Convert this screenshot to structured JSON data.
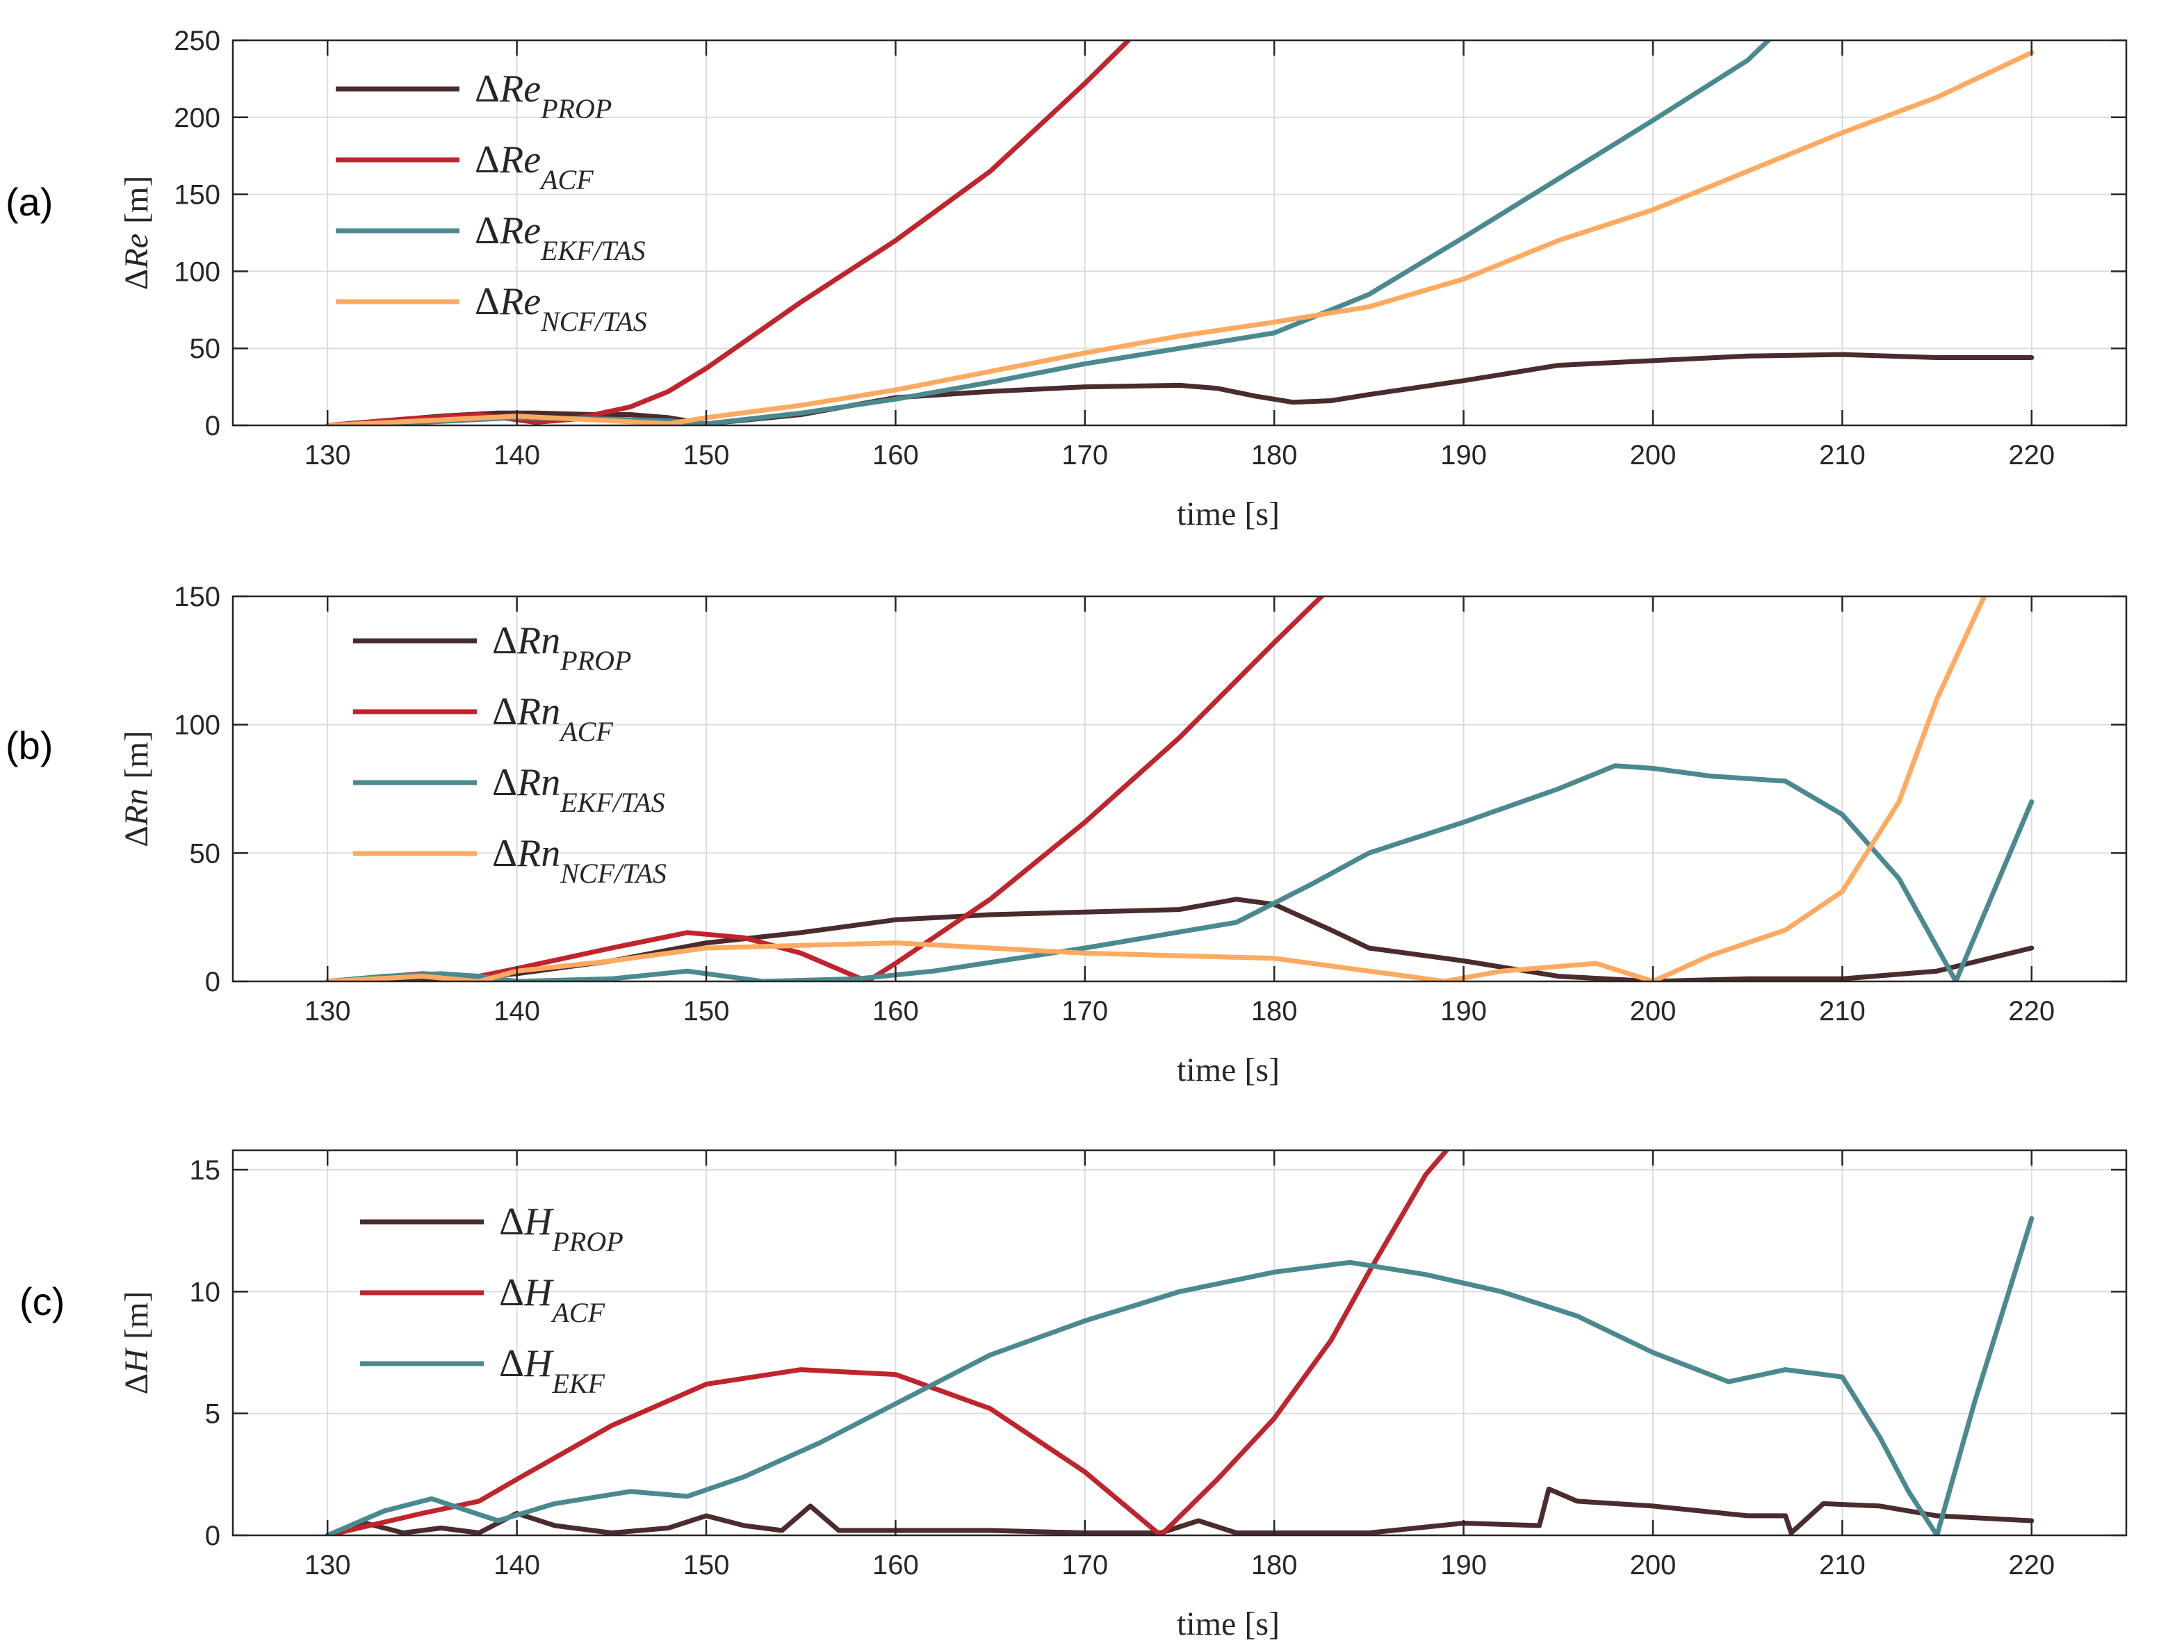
{
  "figure": {
    "colors": {
      "prop": "#4a2c2e",
      "acf": "#c0242c",
      "ekf": "#4a8a8f",
      "ncf": "#ffaa60",
      "grid": "#dcdcdc",
      "axis": "#262626"
    }
  },
  "chart_data": [
    {
      "type": "line",
      "panel_label": "(a)",
      "xlabel": "time [s]",
      "ylabel": {
        "delta": "Δ",
        "var": "Re",
        "unit": "[m]"
      },
      "xlim": [
        125,
        225
      ],
      "ylim": [
        0,
        250
      ],
      "xticks": [
        130,
        140,
        150,
        160,
        170,
        180,
        190,
        200,
        210,
        220
      ],
      "xtick_labels": [
        "130",
        "140",
        "150",
        "160",
        "170",
        "180",
        "190",
        "200",
        "210",
        "220"
      ],
      "yticks": [
        0,
        50,
        100,
        150,
        200,
        250
      ],
      "ytick_labels": [
        "0",
        "50",
        "100",
        "150",
        "200",
        "250"
      ],
      "legend_position": "top-left",
      "series": [
        {
          "key": "prop",
          "legend": {
            "delta": "Δ",
            "var": "Re",
            "sub": "PROP"
          },
          "x": [
            130,
            133,
            136,
            139,
            141,
            144,
            146,
            148,
            150,
            155,
            160,
            165,
            170,
            175,
            177,
            179,
            181,
            183,
            185,
            190,
            195,
            200,
            205,
            210,
            215,
            220
          ],
          "y": [
            0,
            3,
            6,
            8,
            8,
            7,
            7,
            5,
            1,
            7,
            18,
            22,
            25,
            26,
            24,
            19,
            15,
            16,
            20,
            29,
            39,
            42,
            45,
            46,
            44,
            44
          ]
        },
        {
          "key": "acf",
          "legend": {
            "delta": "Δ",
            "var": "Re",
            "sub": "ACF"
          },
          "x": [
            130,
            134,
            138,
            141,
            143,
            146,
            148,
            150,
            155,
            160,
            165,
            170,
            172.3
          ],
          "y": [
            0,
            4,
            7,
            2,
            4,
            12,
            22,
            37,
            80,
            120,
            165,
            222,
            250
          ]
        },
        {
          "key": "ekf",
          "legend": {
            "delta": "Δ",
            "var": "Re",
            "sub": "EKF/TAS"
          },
          "x": [
            130,
            135,
            140,
            145,
            148,
            150,
            155,
            160,
            165,
            170,
            175,
            180,
            182,
            185,
            190,
            195,
            200,
            205,
            206.1
          ],
          "y": [
            0,
            2,
            5,
            4,
            3,
            1,
            8,
            17,
            28,
            40,
            50,
            60,
            70,
            85,
            122,
            160,
            198,
            237,
            250
          ]
        },
        {
          "key": "ncf",
          "legend": {
            "delta": "Δ",
            "var": "Re",
            "sub": "NCF/TAS"
          },
          "x": [
            130,
            135,
            140,
            145,
            148,
            150,
            155,
            160,
            165,
            170,
            175,
            180,
            185,
            190,
            195,
            200,
            205,
            210,
            215,
            220
          ],
          "y": [
            0,
            3,
            6,
            3,
            1,
            5,
            13,
            23,
            35,
            47,
            58,
            67,
            77,
            95,
            120,
            140,
            165,
            190,
            213,
            242
          ]
        }
      ]
    },
    {
      "type": "line",
      "panel_label": "(b)",
      "xlabel": "time [s]",
      "ylabel": {
        "delta": "Δ",
        "var": "Rn",
        "unit": "[m]"
      },
      "xlim": [
        125,
        225
      ],
      "ylim": [
        0,
        150
      ],
      "xticks": [
        130,
        140,
        150,
        160,
        170,
        180,
        190,
        200,
        210,
        220
      ],
      "xtick_labels": [
        "130",
        "140",
        "150",
        "160",
        "170",
        "180",
        "190",
        "200",
        "210",
        "220"
      ],
      "yticks": [
        0,
        50,
        100,
        150
      ],
      "ytick_labels": [
        "0",
        "50",
        "100",
        "150"
      ],
      "legend_position": "top-left",
      "series": [
        {
          "key": "prop",
          "legend": {
            "delta": "Δ",
            "var": "Rn",
            "sub": "PROP"
          },
          "x": [
            130,
            134,
            137,
            140,
            145,
            150,
            155,
            160,
            165,
            170,
            175,
            178,
            180,
            183,
            185,
            190,
            195,
            200,
            205,
            210,
            215,
            220
          ],
          "y": [
            0,
            1,
            1,
            3,
            8,
            15,
            19,
            24,
            26,
            27,
            28,
            32,
            30,
            20,
            13,
            8,
            2,
            0,
            1,
            1,
            4,
            13
          ]
        },
        {
          "key": "acf",
          "legend": {
            "delta": "Δ",
            "var": "Rn",
            "sub": "ACF"
          },
          "x": [
            130,
            135,
            138,
            140,
            145,
            149,
            152,
            155,
            158.5,
            160,
            165,
            170,
            175,
            180,
            182.5
          ],
          "y": [
            0,
            3,
            2,
            5,
            13,
            19,
            17,
            11,
            0,
            7,
            32,
            62,
            95,
            132,
            150
          ]
        },
        {
          "key": "ekf",
          "legend": {
            "delta": "Δ",
            "var": "Rn",
            "sub": "EKF/TAS"
          },
          "x": [
            130,
            133,
            136,
            138,
            140,
            145,
            149,
            153,
            158,
            162,
            170,
            178,
            182,
            185,
            190,
            195,
            198,
            200,
            203,
            207,
            210,
            213,
            216,
            218,
            220
          ],
          "y": [
            0,
            2,
            3,
            2,
            0,
            1,
            4,
            0,
            1,
            4,
            13,
            23,
            38,
            50,
            62,
            75,
            84,
            83,
            80,
            78,
            65,
            40,
            0,
            35,
            70
          ]
        },
        {
          "key": "ncf",
          "legend": {
            "delta": "Δ",
            "var": "Rn",
            "sub": "NCF/TAS"
          },
          "x": [
            130,
            135,
            138,
            140,
            145,
            150,
            155,
            160,
            165,
            170,
            175,
            180,
            185,
            189,
            192,
            197,
            200,
            203,
            207,
            210,
            213,
            215,
            217.5
          ],
          "y": [
            0,
            2,
            0,
            4,
            8,
            13,
            14,
            15,
            13,
            11,
            10,
            9,
            4,
            0,
            4,
            7,
            0,
            10,
            20,
            35,
            70,
            110,
            150
          ]
        }
      ]
    },
    {
      "type": "line",
      "panel_label": "(c)",
      "xlabel": "time [s]",
      "ylabel": {
        "delta": "Δ",
        "var": "H",
        "unit": "[m]"
      },
      "xlim": [
        125,
        225
      ],
      "ylim": [
        0,
        15.8
      ],
      "xticks": [
        130,
        140,
        150,
        160,
        170,
        180,
        190,
        200,
        210,
        220
      ],
      "xtick_labels": [
        "130",
        "140",
        "150",
        "160",
        "170",
        "180",
        "190",
        "200",
        "210",
        "220"
      ],
      "yticks": [
        0,
        5,
        10,
        15
      ],
      "ytick_labels": [
        "0",
        "5",
        "10",
        "15"
      ],
      "legend_position": "top-left",
      "series": [
        {
          "key": "prop",
          "legend": {
            "delta": "Δ",
            "var": "H",
            "sub": "PROP"
          },
          "x": [
            130,
            132,
            134,
            136,
            138,
            140,
            142,
            145,
            148,
            150,
            152,
            154,
            155.5,
            157,
            160,
            165,
            170,
            174,
            176,
            178,
            185,
            190,
            194,
            194.5,
            196,
            200,
            205,
            207,
            207.3,
            209,
            212,
            215,
            220
          ],
          "y": [
            0,
            0.5,
            0.1,
            0.3,
            0.1,
            0.9,
            0.4,
            0.1,
            0.3,
            0.8,
            0.4,
            0.2,
            1.2,
            0.2,
            0.2,
            0.2,
            0.1,
            0.1,
            0.6,
            0.1,
            0.1,
            0.5,
            0.4,
            1.9,
            1.4,
            1.2,
            0.8,
            0.8,
            0.1,
            1.3,
            1.2,
            0.8,
            0.6
          ]
        },
        {
          "key": "acf",
          "legend": {
            "delta": "Δ",
            "var": "H",
            "sub": "ACF"
          },
          "x": [
            130,
            135,
            138,
            140,
            145,
            150,
            155,
            160,
            165,
            170,
            174,
            177,
            180,
            183,
            185,
            188,
            189.1
          ],
          "y": [
            0,
            0.9,
            1.4,
            2.3,
            4.5,
            6.2,
            6.8,
            6.6,
            5.2,
            2.6,
            0,
            2.3,
            4.8,
            8.0,
            10.8,
            14.8,
            15.8
          ]
        },
        {
          "key": "ekf",
          "legend": {
            "delta": "Δ",
            "var": "H",
            "sub": "EKF"
          },
          "x": [
            130,
            133,
            135.5,
            139,
            142,
            146,
            149,
            152,
            156,
            160,
            165,
            170,
            175,
            180,
            184,
            188,
            192,
            196,
            200,
            204,
            207,
            210,
            212,
            213.5,
            215,
            217,
            220
          ],
          "y": [
            0,
            1.0,
            1.5,
            0.6,
            1.3,
            1.8,
            1.6,
            2.4,
            3.8,
            5.4,
            7.4,
            8.8,
            10.0,
            10.8,
            11.2,
            10.7,
            10.0,
            9.0,
            7.5,
            6.3,
            6.8,
            6.5,
            4.0,
            1.8,
            0,
            5.5,
            13.0
          ]
        }
      ]
    }
  ]
}
